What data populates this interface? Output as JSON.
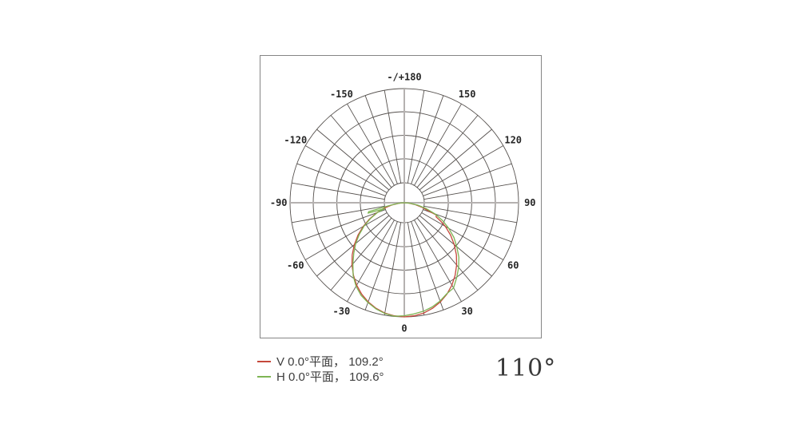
{
  "panel": {
    "border_color": "#858585",
    "background": "#ffffff"
  },
  "chart_data": {
    "type": "polar",
    "title": "",
    "angle_unit": "deg",
    "zero_direction": "down",
    "positive_side": "right",
    "grid": {
      "spoke_step_deg": 10,
      "ring_radii_frac": [
        0.175,
        0.385,
        0.59,
        0.797,
        1.0
      ],
      "hub_radius_frac": 0.175,
      "grid_color": "#55504d",
      "axis_color": "#b5b1b0",
      "label_radius_frac": 1.1,
      "legend_position": "bottom-left"
    },
    "angle_labels": [
      {
        "angle": 180,
        "text": "-/+180"
      },
      {
        "angle": 150,
        "text": "150"
      },
      {
        "angle": 120,
        "text": "120"
      },
      {
        "angle": 90,
        "text": "90"
      },
      {
        "angle": 60,
        "text": "60"
      },
      {
        "angle": 30,
        "text": "30"
      },
      {
        "angle": 0,
        "text": "0"
      },
      {
        "angle": -30,
        "text": "-30"
      },
      {
        "angle": -60,
        "text": "-60"
      },
      {
        "angle": -90,
        "text": "-90"
      },
      {
        "angle": -120,
        "text": "-120"
      },
      {
        "angle": -150,
        "text": "-150"
      }
    ],
    "series": [
      {
        "id": "V",
        "name": "V 0.0°平面， 109.2°",
        "color": "#c5483b",
        "beam_angle_deg": 109.2,
        "points": [
          [
            -90,
            0
          ],
          [
            -85,
            0.045
          ],
          [
            -80,
            0.108
          ],
          [
            -75,
            0.18
          ],
          [
            -70,
            0.256
          ],
          [
            -65,
            0.335
          ],
          [
            -60,
            0.415
          ],
          [
            -55,
            0.494
          ],
          [
            -50,
            0.571
          ],
          [
            -45,
            0.645
          ],
          [
            -40,
            0.713
          ],
          [
            -35,
            0.776
          ],
          [
            -30,
            0.833
          ],
          [
            -25,
            0.883
          ],
          [
            -20,
            0.924
          ],
          [
            -15,
            0.957
          ],
          [
            -10,
            0.981
          ],
          [
            -5,
            0.995
          ],
          [
            0,
            1.0
          ],
          [
            5,
            0.995
          ],
          [
            10,
            0.981
          ],
          [
            15,
            0.957
          ],
          [
            20,
            0.924
          ],
          [
            25,
            0.883
          ],
          [
            30,
            0.833
          ],
          [
            35,
            0.776
          ],
          [
            40,
            0.713
          ],
          [
            45,
            0.645
          ],
          [
            50,
            0.571
          ],
          [
            55,
            0.494
          ],
          [
            60,
            0.415
          ],
          [
            63,
            0.36
          ],
          [
            66,
            0.305
          ],
          [
            69,
            0.3
          ],
          [
            72,
            0.21
          ],
          [
            75,
            0.17
          ],
          [
            80,
            0.1
          ],
          [
            85,
            0.04
          ],
          [
            90,
            0
          ]
        ]
      },
      {
        "id": "H",
        "name": "H 0.0°平面， 109.6°",
        "color": "#7eb554",
        "beam_angle_deg": 109.6,
        "points": [
          [
            -90,
            0
          ],
          [
            -87,
            0.02
          ],
          [
            -83,
            0.06
          ],
          [
            -80,
            0.12
          ],
          [
            -76,
            0.32
          ],
          [
            -74,
            0.33
          ],
          [
            -73,
            0.18
          ],
          [
            -70,
            0.25
          ],
          [
            -65,
            0.325
          ],
          [
            -60,
            0.405
          ],
          [
            -55,
            0.48
          ],
          [
            -50,
            0.555
          ],
          [
            -45,
            0.625
          ],
          [
            -40,
            0.7
          ],
          [
            -35,
            0.78
          ],
          [
            -30,
            0.845
          ],
          [
            -25,
            0.895
          ],
          [
            -20,
            0.93
          ],
          [
            -15,
            0.962
          ],
          [
            -10,
            0.985
          ],
          [
            -5,
            0.998
          ],
          [
            0,
            0.99
          ],
          [
            5,
            0.978
          ],
          [
            10,
            0.965
          ],
          [
            15,
            0.945
          ],
          [
            20,
            0.916
          ],
          [
            25,
            0.88
          ],
          [
            30,
            0.862
          ],
          [
            35,
            0.8
          ],
          [
            40,
            0.74
          ],
          [
            45,
            0.675
          ],
          [
            50,
            0.6
          ],
          [
            55,
            0.53
          ],
          [
            60,
            0.45
          ],
          [
            65,
            0.37
          ],
          [
            70,
            0.285
          ],
          [
            75,
            0.2
          ],
          [
            80,
            0.12
          ],
          [
            85,
            0.05
          ],
          [
            90,
            0
          ]
        ]
      }
    ]
  },
  "legend": {
    "items": [
      {
        "label": "V 0.0°平面， 109.2°",
        "color": "#c5483b"
      },
      {
        "label": "H 0.0°平面， 109.6°",
        "color": "#7eb554"
      }
    ]
  },
  "summary": {
    "beam_angle": "110°"
  }
}
